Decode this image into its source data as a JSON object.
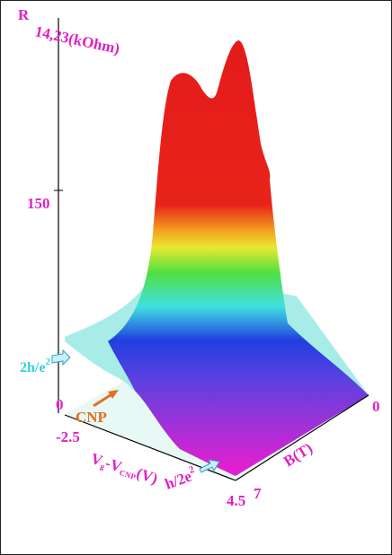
{
  "figure": {
    "z_axis": {
      "symbol": "R",
      "label": "14,23(kOhm)",
      "ticks": [
        "150",
        "0"
      ]
    },
    "x_axis": {
      "parts": [
        "V",
        "g",
        "-V",
        "CNP",
        "(V)"
      ],
      "ticks": [
        "-2.5",
        "4.5"
      ]
    },
    "y_axis": {
      "label": "B(T)",
      "ticks": [
        "7",
        "0"
      ]
    },
    "annotations": {
      "plateau_high": [
        "2h/e",
        "2"
      ],
      "plateau_low": [
        "h/2e",
        "2"
      ],
      "cnp": "CNP"
    }
  }
}
